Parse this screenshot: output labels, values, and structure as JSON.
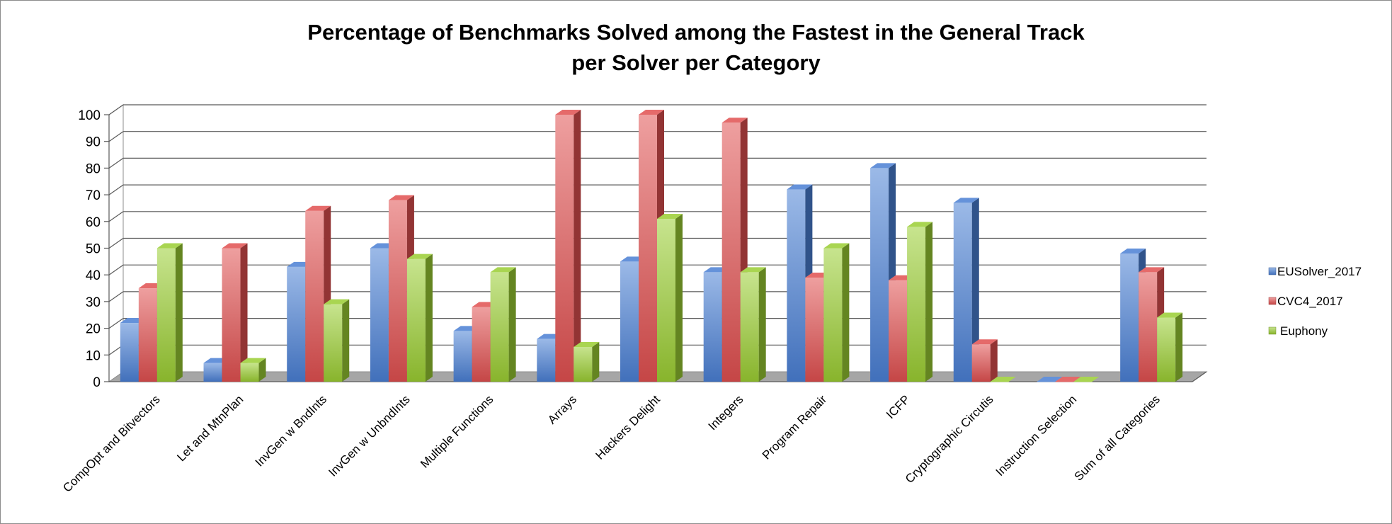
{
  "chart_data": {
    "type": "bar",
    "title": "Percentage of Benchmarks Solved among the Fastest in the General Track",
    "subtitle": "per Solver per Category",
    "categories": [
      "CompOpt and Bitvectors",
      "Let and MtnPlan",
      "InvGen w BndInts",
      "InvGen w UnbndInts",
      "Multiple Functions",
      "Arrays",
      "Hackers Delight",
      "Integers",
      "Program Repair",
      "ICFP",
      "Cryptographic Circutis",
      "Instruction Selection",
      "Sum of all Categories"
    ],
    "series": [
      {
        "name": "EUSolver_2017",
        "color": "#4a7fd4",
        "values": [
          22,
          7,
          43,
          50,
          19,
          16,
          45,
          41,
          72,
          80,
          67,
          0,
          48
        ]
      },
      {
        "name": "CVC4_2017",
        "color": "#e05050",
        "values": [
          35,
          50,
          64,
          68,
          28,
          100,
          100,
          97,
          39,
          38,
          14,
          0,
          41
        ]
      },
      {
        "name": "Euphony",
        "color": "#9acd32",
        "values": [
          50,
          7,
          29,
          46,
          41,
          13,
          61,
          41,
          50,
          58,
          0,
          0,
          24
        ]
      }
    ],
    "yticks": [
      "0",
      "10",
      "20",
      "30",
      "40",
      "50",
      "60",
      "70",
      "80",
      "90",
      "100"
    ],
    "ylim": [
      0,
      100
    ],
    "grid": true,
    "legend_position": "right",
    "style": "3d-clustered-column"
  }
}
